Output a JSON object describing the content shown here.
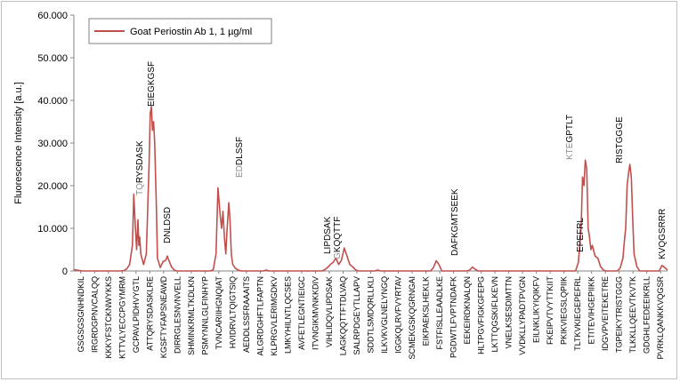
{
  "chart_data": {
    "type": "line",
    "ylabel": "Fluorescence Intensity [a.u.]",
    "xlabel": "",
    "ylim": [
      0,
      60000
    ],
    "yticks": [
      0,
      10000,
      20000,
      30000,
      40000,
      50000,
      60000
    ],
    "ytick_labels": [
      "0",
      "10.000",
      "20.000",
      "30.000",
      "40.000",
      "50.000",
      "60.000"
    ],
    "grid": false,
    "legend_position": "top-left",
    "series_color": "#c0504d",
    "x_count": 213,
    "x_tick_labels": [
      "GSGSGSGNHNDKIL",
      "IRGRDGPNVCALQQ",
      "KKKYFSTCKNWYKKS",
      "KTTVLYECCPGYMRM",
      "GCPAVLPIDHVYGTL",
      "ATTQRYSDASKLRE",
      "KGSFTYFAPSNEAWD",
      "DIRRGLESNVNVELL",
      "SHMINKRMLTKDLKN",
      "PSMYNNLGLFINHYP",
      "TVNCARIIHGNQIAT",
      "HVIDRVLTQIGTSIQ",
      "AEDDLSSFRAAAITS",
      "ALGRDGHFTLFAPTN",
      "KLPRGVLERIMGDKV",
      "LMKYHILNTLQCSES",
      "AVFETLEGNTIEIGC",
      "ITVNGIKMVNKKDIV",
      "VIHLIDQVLIPDSAK",
      "LAGKQQTTFTDLVAQ",
      "SALRPDGEYTLLAPV",
      "SDDTLSMDQRLLKLI",
      "ILKVKVGLNELYNGQ",
      "IGGKQLRVFVYRTAV",
      "SCMEKGSKQGRNGAI",
      "EIKPAEKSLHEKLK",
      "FSTFISLLEAADLKE",
      "PGDWTLFVPTNDAFK",
      "EEKEIRDKNALQN",
      "HLTPGVFIGKGFEPG",
      "LKTTQGSKIFLKEVN",
      "VNELKSESDIMTTN",
      "VVDKLLYPADTPVGN",
      "EILNKLIKYIQIKFV",
      "FKEIPVTVYTTKIIT",
      "PKIKVIEGSLQPIIK",
      "TLTKVKIEGEPEFRL",
      "ETITEVIHGEPIIKK",
      "IDGVPVEITEKETRE",
      "TGPEIKYTRISTGGG",
      "TLKKLLQEEVTKVTK",
      "GDGHLFEDEEIKRLL",
      "PVRKLQANKKVQGSR"
    ],
    "annotations": [
      {
        "grey": "TQ",
        "text": "RYSDASK"
      },
      {
        "grey": "",
        "text": "EIEGKGSF"
      },
      {
        "grey": "",
        "text": "DNLDSD"
      },
      {
        "grey": "ED",
        "text": "DLSSF"
      },
      {
        "grey": "",
        "text": "LIPDSAK"
      },
      {
        "grey": "G",
        "text": "KQQTTF"
      },
      {
        "grey": "",
        "text": "DAFKGMTSEEK"
      },
      {
        "grey": "KTE",
        "text": "GPTLT"
      },
      {
        "grey": "",
        "text": "EPEFRL"
      },
      {
        "grey": "",
        "text": "RISTGGGE"
      },
      {
        "grey": "",
        "text": "KVQGSRRR"
      }
    ],
    "series": [
      {
        "name": "Goat  Periostin Ab 1, 1 µg/ml",
        "points": [
          [
            0,
            300
          ],
          [
            3,
            0
          ],
          [
            17,
            0
          ],
          [
            18,
            100
          ],
          [
            19,
            500
          ],
          [
            20,
            1500
          ],
          [
            21,
            6000
          ],
          [
            21.5,
            18000
          ],
          [
            22,
            11000
          ],
          [
            22.5,
            5000
          ],
          [
            23,
            12000
          ],
          [
            23.3,
            6000
          ],
          [
            23.6,
            8000
          ],
          [
            24,
            4000
          ],
          [
            25,
            1500
          ],
          [
            26,
            4000
          ],
          [
            27,
            25000
          ],
          [
            27.4,
            37000
          ],
          [
            27.8,
            38500
          ],
          [
            28.2,
            33000
          ],
          [
            28.6,
            35000
          ],
          [
            29,
            30000
          ],
          [
            29.6,
            15000
          ],
          [
            30,
            3000
          ],
          [
            31,
            800
          ],
          [
            32,
            2200
          ],
          [
            33,
            2500
          ],
          [
            33.5,
            3500
          ],
          [
            34,
            2600
          ],
          [
            35,
            1000
          ],
          [
            36,
            200
          ],
          [
            37,
            0
          ],
          [
            49,
            0
          ],
          [
            50,
            300
          ],
          [
            51,
            4000
          ],
          [
            51.7,
            19500
          ],
          [
            52.5,
            13000
          ],
          [
            53,
            10000
          ],
          [
            53.5,
            14000
          ],
          [
            54,
            8000
          ],
          [
            54.5,
            4000
          ],
          [
            55,
            10000
          ],
          [
            55.6,
            16000
          ],
          [
            56,
            12000
          ],
          [
            56.5,
            4000
          ],
          [
            57,
            1500
          ],
          [
            58,
            600
          ],
          [
            59,
            200
          ],
          [
            60,
            0
          ],
          [
            68,
            0
          ],
          [
            69,
            200
          ],
          [
            70,
            0
          ],
          [
            89,
            0
          ],
          [
            90,
            300
          ],
          [
            91,
            800
          ],
          [
            92,
            1500
          ],
          [
            93,
            2000
          ],
          [
            94,
            3000
          ],
          [
            95,
            1500
          ],
          [
            96,
            2500
          ],
          [
            97,
            5400
          ],
          [
            98,
            3500
          ],
          [
            99,
            1500
          ],
          [
            100,
            1000
          ],
          [
            101,
            300
          ],
          [
            102,
            0
          ],
          [
            108,
            0
          ],
          [
            109,
            200
          ],
          [
            110,
            0
          ],
          [
            128,
            0
          ],
          [
            129,
            800
          ],
          [
            130,
            2400
          ],
          [
            131,
            1500
          ],
          [
            132,
            0
          ],
          [
            141,
            0
          ],
          [
            142,
            200
          ],
          [
            143,
            900
          ],
          [
            144,
            400
          ],
          [
            145,
            0
          ],
          [
            180,
            0
          ],
          [
            181,
            2000
          ],
          [
            182,
            10000
          ],
          [
            182.5,
            22000
          ],
          [
            183,
            20000
          ],
          [
            183.5,
            26000
          ],
          [
            184,
            24000
          ],
          [
            184.5,
            10000
          ],
          [
            185,
            8000
          ],
          [
            185.5,
            5000
          ],
          [
            186,
            6000
          ],
          [
            187,
            3500
          ],
          [
            188,
            3000
          ],
          [
            189,
            1000
          ],
          [
            190,
            200
          ],
          [
            191,
            0
          ],
          [
            195,
            0
          ],
          [
            196,
            700
          ],
          [
            197,
            3000
          ],
          [
            197.5,
            7000
          ],
          [
            198,
            10000
          ],
          [
            198.5,
            20000
          ],
          [
            199,
            23000
          ],
          [
            199.5,
            25000
          ],
          [
            200,
            22000
          ],
          [
            200.5,
            12000
          ],
          [
            201,
            4000
          ],
          [
            202,
            1000
          ],
          [
            203,
            0
          ],
          [
            210,
            0
          ],
          [
            211,
            1300
          ],
          [
            212,
            800
          ],
          [
            213,
            200
          ]
        ]
      }
    ]
  }
}
